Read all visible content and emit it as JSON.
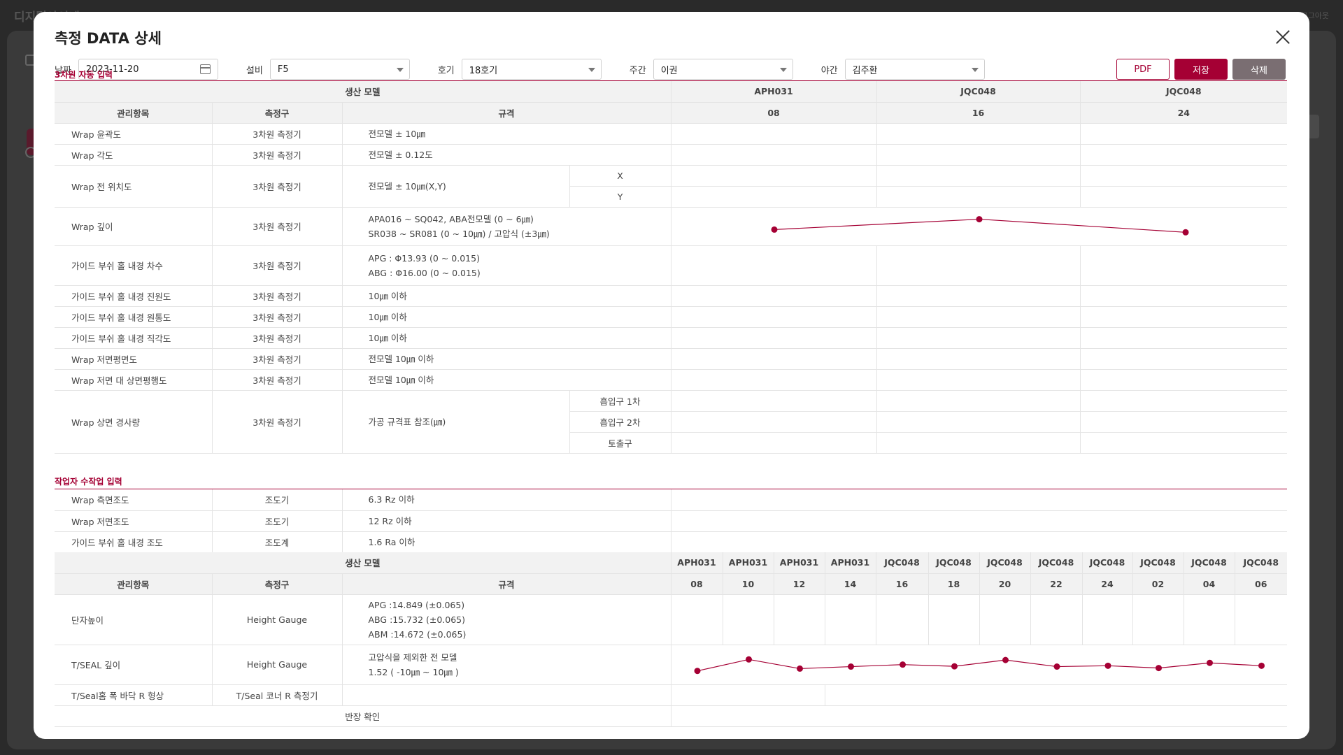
{
  "background": {
    "title": "디지털아이넷",
    "user": "로그아웃"
  },
  "modal": {
    "title": "측정 DATA 상세",
    "filters": {
      "date_label": "날짜",
      "date_value": "2023-11-20",
      "equip_label": "설비",
      "equip_value": "F5",
      "unit_label": "호기",
      "unit_value": "18호기",
      "day_label": "주간",
      "day_value": "이권",
      "night_label": "야간",
      "night_value": "김주환"
    },
    "actions": {
      "pdf": "PDF",
      "save": "저장",
      "delete": "삭제"
    }
  },
  "section1": {
    "title": "3차원 자동 입력",
    "header": {
      "production_model": "생산 모델",
      "col_item": "관리항목",
      "col_tool": "측정구",
      "col_spec": "규격",
      "models": [
        "APH031",
        "JQC048",
        "JQC048"
      ],
      "times": [
        "08",
        "16",
        "24"
      ]
    },
    "rows": [
      {
        "item": "Wrap 윤곽도",
        "tool": "3차원 측정기",
        "spec": "전모델 ± 10㎛"
      },
      {
        "item": "Wrap 각도",
        "tool": "3차원 측정기",
        "spec": "전모델 ± 0.12도"
      },
      {
        "item": "Wrap 전 위치도",
        "tool": "3차원 측정기",
        "spec": "전모델 ± 10㎛(X,Y)",
        "subs": [
          "X",
          "Y"
        ]
      },
      {
        "item": "Wrap 깊이",
        "tool": "3차원 측정기",
        "spec": "APA016 ~ SQ042, ABA전모델 (0 ~ 6㎛)",
        "spec2": "SR038 ~ SR081 (0 ~ 10㎛) / 고압식 (±3㎛)"
      },
      {
        "item": "가이드 부쉬 홀 내경 차수",
        "tool": "3차원 측정기",
        "spec": "APG : Φ13.93 (0 ~ 0.015)",
        "spec2": "ABG : Φ16.00 (0 ~ 0.015)"
      },
      {
        "item": "가이드 부쉬 홀 내경 진원도",
        "tool": "3차원 측정기",
        "spec": "10㎛ 이하"
      },
      {
        "item": "가이드 부쉬 홀 내경 원통도",
        "tool": "3차원 측정기",
        "spec": "10㎛ 이하"
      },
      {
        "item": "가이드 부쉬 홀 내경 직각도",
        "tool": "3차원 측정기",
        "spec": "10㎛ 이하"
      },
      {
        "item": "Wrap 저면평면도",
        "tool": "3차원 측정기",
        "spec": "전모델 10㎛ 이하"
      },
      {
        "item": "Wrap 저면 대 상면평행도",
        "tool": "3차원 측정기",
        "spec": "전모델 10㎛ 이하"
      },
      {
        "item": "Wrap 상면 경사량",
        "tool": "3차원 측정기",
        "spec": "가공 규격표 참조(㎛)",
        "subs": [
          "흡입구 1차",
          "흡입구 2차",
          "토출구"
        ]
      }
    ]
  },
  "section2": {
    "title": "작업자 수작업 입력",
    "rows": [
      {
        "item": "Wrap 측면조도",
        "tool": "조도기",
        "spec": "6.3 Rz 이하"
      },
      {
        "item": "Wrap 저면조도",
        "tool": "조도기",
        "spec": "12 Rz 이하"
      },
      {
        "item": "가이드 부쉬 홀 내경 조도",
        "tool": "조도계",
        "spec": "1.6 Ra 이하"
      }
    ],
    "header": {
      "production_model": "생산 모델",
      "col_item": "관리항목",
      "col_tool": "측정구",
      "col_spec": "규격",
      "models": [
        "APH031",
        "APH031",
        "APH031",
        "APH031",
        "JQC048",
        "JQC048",
        "JQC048",
        "JQC048",
        "JQC048",
        "JQC048",
        "JQC048",
        "JQC048"
      ],
      "times": [
        "08",
        "10",
        "12",
        "14",
        "16",
        "18",
        "20",
        "22",
        "24",
        "02",
        "04",
        "06"
      ]
    },
    "rows2": [
      {
        "item": "단자높이",
        "tool": "Height Gauge",
        "spec": "APG :14.849 (±0.065)",
        "spec2": "ABG :15.732 (±0.065)",
        "spec3": "ABM :14.672 (±0.065)"
      },
      {
        "item": "T/SEAL 깊이",
        "tool": "Height Gauge",
        "spec": "고압식을 제외한 전 모델",
        "spec2": "1.52 ( -10㎛ ~ 10㎛ )"
      },
      {
        "item": "T/Seal홈 폭 바닥 R 형상",
        "tool": "T/Seal 코너 R 측정기",
        "spec": ""
      },
      {
        "item": "반장 확인"
      }
    ]
  },
  "chart_data": [
    {
      "type": "line",
      "series": [
        {
          "values": [
            0.4,
            0.78,
            0.3
          ]
        }
      ],
      "categories": [
        "08",
        "16",
        "24"
      ]
    },
    {
      "type": "line",
      "series": [
        {
          "values": [
            0.3,
            0.7,
            0.38,
            0.45,
            0.52,
            0.46,
            0.68,
            0.45,
            0.48,
            0.4,
            0.58,
            0.48
          ]
        }
      ],
      "categories": [
        "08",
        "10",
        "12",
        "14",
        "16",
        "18",
        "20",
        "22",
        "24",
        "02",
        "04",
        "06"
      ]
    }
  ]
}
